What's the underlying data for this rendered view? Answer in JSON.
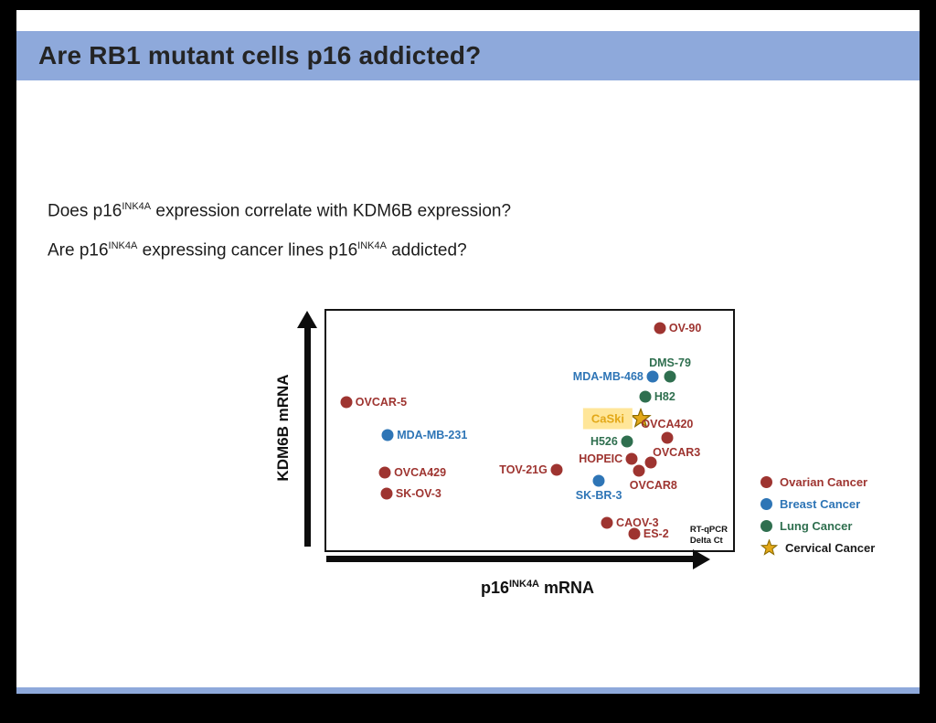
{
  "theme": {
    "accent": "#8EA9DB",
    "slide_bg": "#FFFFFF",
    "frame_bg": "#000000"
  },
  "slide": {
    "title": "Are RB1 mutant cells p16 addicted?",
    "question1": {
      "pre": "Does p16",
      "sup": "INK4A",
      "post": " expression correlate with KDM6B expression?"
    },
    "question2": {
      "pre": "Are p16",
      "sup1": "INK4A",
      "mid": " expressing cancer lines p16",
      "sup2": "INK4A",
      "post": " addicted?"
    }
  },
  "chart_data": {
    "type": "scatter",
    "title": "",
    "xlabel": {
      "pre": "p16",
      "sup": "INK4A",
      "post": " mRNA"
    },
    "ylabel": "KDM6B mRNA",
    "note_line1": "RT-qPCR",
    "note_line2": "Delta Ct",
    "axes_note": "qualitative arrow axes, no tick labels; point coords are percent of plot box, y measured from top",
    "colors": {
      "ovarian": "#9E3430",
      "breast": "#2E75B6",
      "lung": "#2F6F4F",
      "cervical": "#E3A818",
      "cervical_stroke": "#8A6A00",
      "highlight_box": "#FFE699"
    },
    "legend": [
      {
        "label": "Ovarian Cancer",
        "marker": "dot",
        "color": "#9E3430"
      },
      {
        "label": "Breast Cancer",
        "marker": "dot",
        "color": "#2E75B6"
      },
      {
        "label": "Lung Cancer",
        "marker": "dot",
        "color": "#2F6F4F"
      },
      {
        "label": "Cervical Cancer",
        "marker": "star",
        "color": "#E3A818",
        "text_color": "#1a1a1a"
      }
    ],
    "points": [
      {
        "name": "OV-90",
        "category": "ovarian",
        "x": 82.0,
        "y": 7.3,
        "label_side": "right"
      },
      {
        "name": "MDA-MB-468",
        "category": "breast",
        "x": 80.2,
        "y": 27.5,
        "label_side": "left"
      },
      {
        "name": "DMS-79",
        "category": "lung",
        "x": 84.5,
        "y": 27.5,
        "label_side": "above"
      },
      {
        "name": "H82",
        "category": "lung",
        "x": 78.4,
        "y": 35.9,
        "label_side": "right"
      },
      {
        "name": "OVCAR-5",
        "category": "ovarian",
        "x": 4.9,
        "y": 38.2,
        "label_side": "right"
      },
      {
        "name": "CaSki",
        "category": "cervical",
        "x": 77.3,
        "y": 45.0,
        "label_side": "left",
        "marker": "star",
        "highlight": true
      },
      {
        "name": "OVCA420",
        "category": "ovarian",
        "x": 83.8,
        "y": 53.1,
        "label_side": "above"
      },
      {
        "name": "MDA-MB-231",
        "category": "breast",
        "x": 15.1,
        "y": 51.9,
        "label_side": "right"
      },
      {
        "name": "H526",
        "category": "lung",
        "x": 73.9,
        "y": 54.6,
        "label_side": "left"
      },
      {
        "name": "OVCAR3",
        "category": "ovarian",
        "x": 79.8,
        "y": 63.4,
        "label_side": "above-right"
      },
      {
        "name": "HOPEIC",
        "category": "ovarian",
        "x": 75.1,
        "y": 61.8,
        "label_side": "left"
      },
      {
        "name": "TOV-21G",
        "category": "ovarian",
        "x": 56.6,
        "y": 66.4,
        "label_side": "left"
      },
      {
        "name": "OVCA429",
        "category": "ovarian",
        "x": 14.4,
        "y": 67.6,
        "label_side": "right"
      },
      {
        "name": "OVCAR8",
        "category": "ovarian",
        "x": 76.9,
        "y": 66.8,
        "label_side": "below-left"
      },
      {
        "name": "SK-OV-3",
        "category": "ovarian",
        "x": 14.8,
        "y": 76.3,
        "label_side": "right"
      },
      {
        "name": "SK-BR-3",
        "category": "breast",
        "x": 67.0,
        "y": 71.0,
        "label_side": "below"
      },
      {
        "name": "CAOV-3",
        "category": "ovarian",
        "x": 69.0,
        "y": 88.5,
        "label_side": "right"
      },
      {
        "name": "ES-2",
        "category": "ovarian",
        "x": 75.7,
        "y": 93.1,
        "label_side": "right"
      }
    ]
  }
}
